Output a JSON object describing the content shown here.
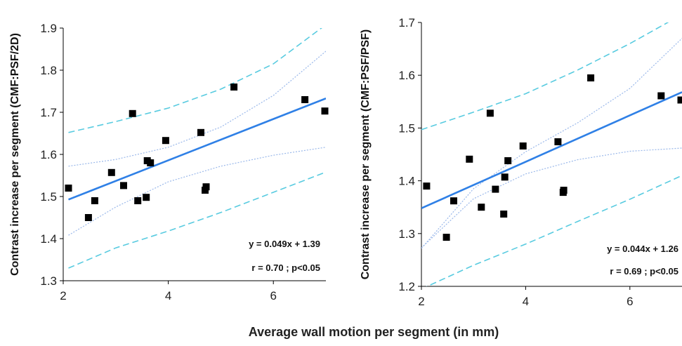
{
  "figure": {
    "shared_xlabel": "Average wall motion per segment (in mm)"
  },
  "chart_data": [
    {
      "type": "scatter",
      "title": "",
      "xlabel": "",
      "ylabel": "Contrast increase per segment (CMF:PSF/2D)",
      "xlim": [
        2,
        7
      ],
      "ylim": [
        1.3,
        1.9
      ],
      "xticks": [
        "2",
        "4",
        "6"
      ],
      "yticks": [
        "1.3",
        "1.4",
        "1.5",
        "1.6",
        "1.7",
        "1.8",
        "1.9"
      ],
      "grid": false,
      "colors": {
        "points": "#000000",
        "fit": "#2f80e6",
        "confidence": "#9ab8ea",
        "prediction": "#58cbe0"
      },
      "series": [
        {
          "x": [
            2.1,
            2.48,
            2.6,
            2.92,
            3.15,
            3.32,
            3.42,
            3.58,
            3.6,
            3.66,
            3.95,
            4.62,
            4.7,
            4.72,
            5.25,
            6.6,
            6.98
          ],
          "y": [
            1.52,
            1.45,
            1.49,
            1.557,
            1.526,
            1.697,
            1.49,
            1.498,
            1.585,
            1.58,
            1.633,
            1.652,
            1.515,
            1.523,
            1.76,
            1.73,
            1.703
          ]
        }
      ],
      "fit_line": {
        "slope": 0.049,
        "intercept": 1.39,
        "x_range": [
          2.1,
          7
        ]
      },
      "confidence_band": {
        "upper": {
          "x": [
            2.1,
            3.0,
            4.0,
            5.0,
            6.0,
            7.0
          ],
          "y": [
            1.572,
            1.588,
            1.617,
            1.665,
            1.74,
            1.845
          ]
        },
        "lower": {
          "x": [
            2.1,
            3.0,
            4.0,
            5.0,
            6.0,
            7.0
          ],
          "y": [
            1.408,
            1.475,
            1.535,
            1.572,
            1.598,
            1.617
          ]
        }
      },
      "prediction_band": {
        "upper": {
          "x": [
            2.1,
            3.0,
            4.0,
            5.0,
            6.0,
            7.0
          ],
          "y": [
            1.652,
            1.678,
            1.71,
            1.755,
            1.815,
            1.908
          ]
        },
        "lower": {
          "x": [
            2.1,
            3.0,
            4.0,
            5.0,
            6.0,
            7.0
          ],
          "y": [
            1.33,
            1.378,
            1.418,
            1.462,
            1.51,
            1.558
          ]
        }
      },
      "annotations": [
        "y = 0.049x + 1.39",
        "r = 0.70 ; p<0.05"
      ]
    },
    {
      "type": "scatter",
      "title": "",
      "xlabel": "",
      "ylabel": "Contrast increase per segment (CMF:PSF/PSF)",
      "xlim": [
        2,
        7
      ],
      "ylim": [
        1.2,
        1.7
      ],
      "xticks": [
        "2",
        "4",
        "6"
      ],
      "yticks": [
        "1.2",
        "1.3",
        "1.4",
        "1.5",
        "1.6",
        "1.7"
      ],
      "grid": false,
      "colors": {
        "points": "#000000",
        "fit": "#2f80e6",
        "confidence": "#9ab8ea",
        "prediction": "#58cbe0"
      },
      "series": [
        {
          "x": [
            2.1,
            2.48,
            2.62,
            2.92,
            3.15,
            3.32,
            3.42,
            3.58,
            3.6,
            3.66,
            3.95,
            4.62,
            4.72,
            4.73,
            5.25,
            6.6,
            6.98
          ],
          "y": [
            1.39,
            1.293,
            1.362,
            1.441,
            1.35,
            1.528,
            1.384,
            1.337,
            1.407,
            1.438,
            1.466,
            1.474,
            1.378,
            1.382,
            1.595,
            1.561,
            1.553
          ]
        }
      ],
      "fit_line": {
        "slope": 0.044,
        "intercept": 1.26,
        "x_range": [
          2.0,
          7
        ]
      },
      "confidence_band": {
        "upper": {
          "x": [
            2.0,
            3.0,
            4.0,
            5.0,
            6.0,
            7.0
          ],
          "y": [
            1.272,
            1.385,
            1.455,
            1.51,
            1.575,
            1.67
          ]
        },
        "lower": {
          "x": [
            2.0,
            3.0,
            4.0,
            5.0,
            6.0,
            7.0
          ],
          "y": [
            1.273,
            1.366,
            1.413,
            1.44,
            1.456,
            1.462
          ]
        }
      },
      "prediction_band": {
        "upper": {
          "x": [
            2.0,
            3.0,
            4.0,
            5.0,
            6.0,
            7.0
          ],
          "y": [
            1.497,
            1.53,
            1.565,
            1.61,
            1.66,
            1.715
          ]
        },
        "lower": {
          "x": [
            2.0,
            3.0,
            4.0,
            5.0,
            6.0,
            7.0
          ],
          "y": [
            1.195,
            1.24,
            1.28,
            1.323,
            1.365,
            1.41
          ]
        }
      },
      "annotations": [
        "y = 0.044x + 1.26",
        "r = 0.69 ; p<0.05"
      ]
    }
  ]
}
